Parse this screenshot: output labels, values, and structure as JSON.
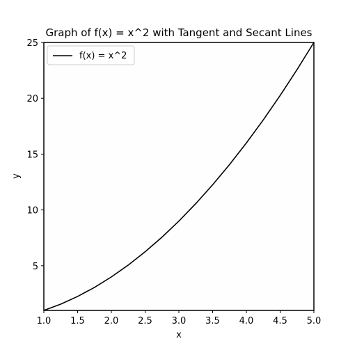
{
  "chart_data": {
    "type": "line",
    "title": "Graph of f(x) = x^2 with Tangent and Secant Lines",
    "xlabel": "x",
    "ylabel": "y",
    "xlim": [
      1.0,
      5.0
    ],
    "ylim": [
      1,
      25
    ],
    "xticks": [
      "1.0",
      "1.5",
      "2.0",
      "2.5",
      "3.0",
      "3.5",
      "4.0",
      "4.5",
      "5.0"
    ],
    "yticks": [
      "5",
      "10",
      "15",
      "20",
      "25"
    ],
    "grid": false,
    "legend_position": "top-left",
    "series": [
      {
        "name": "f(x) = x^2",
        "color": "#000000",
        "x": [
          1.0,
          1.25,
          1.5,
          1.75,
          2.0,
          2.25,
          2.5,
          2.75,
          3.0,
          3.25,
          3.5,
          3.75,
          4.0,
          4.25,
          4.5,
          4.75,
          5.0
        ],
        "y": [
          1.0,
          1.5625,
          2.25,
          3.0625,
          4.0,
          5.0625,
          6.25,
          7.5625,
          9.0,
          10.5625,
          12.25,
          14.0625,
          16.0,
          18.0625,
          20.25,
          22.5625,
          25.0
        ]
      }
    ]
  }
}
